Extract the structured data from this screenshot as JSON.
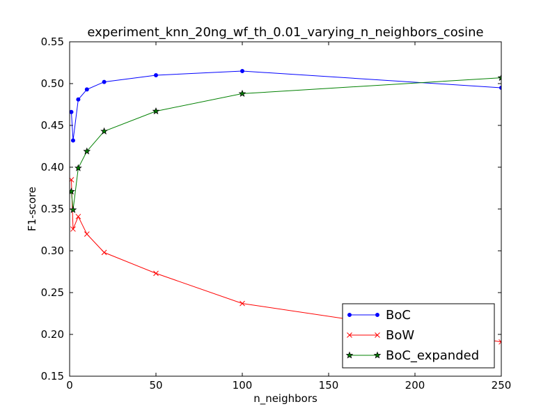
{
  "chart_data": {
    "type": "line",
    "title": "experiment_knn_20ng_wf_th_0.01_varying_n_neighbors_cosine",
    "xlabel": "n_neighbors",
    "ylabel": "F1-score",
    "xlim": [
      0,
      250
    ],
    "ylim": [
      0.15,
      0.55
    ],
    "xticks": [
      0,
      50,
      100,
      150,
      200,
      250
    ],
    "xtick_labels": [
      "0",
      "50",
      "100",
      "150",
      "200",
      "250"
    ],
    "yticks": [
      0.15,
      0.2,
      0.25,
      0.3,
      0.35,
      0.4,
      0.45,
      0.5,
      0.55
    ],
    "ytick_labels": [
      "0.15",
      "0.20",
      "0.25",
      "0.30",
      "0.35",
      "0.40",
      "0.45",
      "0.50",
      "0.55"
    ],
    "grid": false,
    "legend_position": "lower-right",
    "x": [
      1,
      2,
      5,
      10,
      20,
      50,
      100,
      250
    ],
    "series": [
      {
        "name": "BoC",
        "color": "#0000ff",
        "marker": "dot",
        "values": [
          0.466,
          0.432,
          0.481,
          0.493,
          0.502,
          0.51,
          0.515,
          0.495
        ]
      },
      {
        "name": "BoW",
        "color": "#ff0000",
        "marker": "x",
        "values": [
          0.385,
          0.326,
          0.341,
          0.32,
          0.298,
          0.273,
          0.237,
          0.191
        ]
      },
      {
        "name": "BoC_expanded",
        "color": "#008000",
        "marker": "star",
        "values": [
          0.371,
          0.349,
          0.399,
          0.419,
          0.443,
          0.467,
          0.488,
          0.507
        ]
      }
    ]
  }
}
